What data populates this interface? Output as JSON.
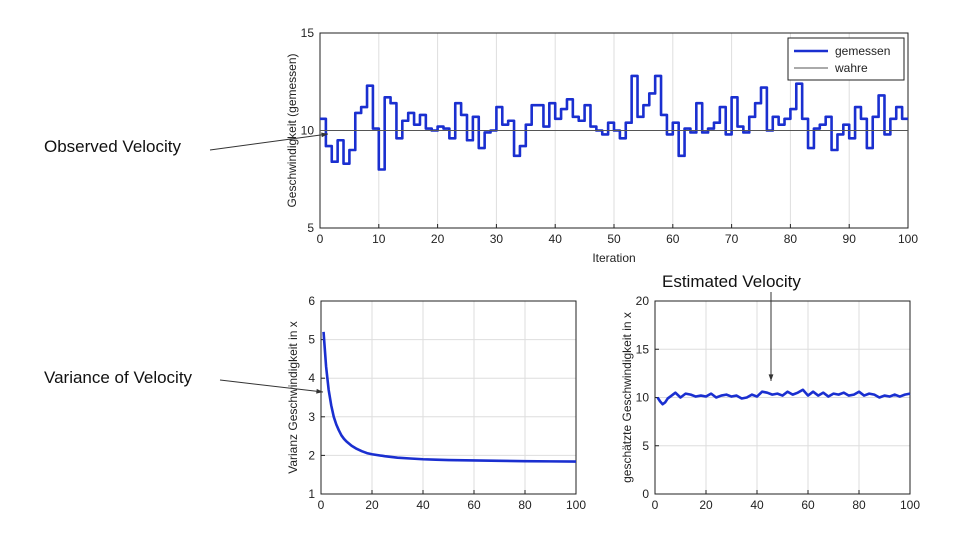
{
  "annotations": {
    "observed": "Observed Velocity",
    "variance": "Variance of Velocity",
    "estimated": "Estimated Velocity"
  },
  "colors": {
    "series": "#1a2fd0",
    "true_line": "#555555",
    "grid": "#dedede",
    "axis": "#222222"
  },
  "chart_data": [
    {
      "id": "top",
      "type": "line",
      "step": true,
      "xlabel": "Iteration",
      "ylabel": "Geschwindigkeit (gemessen)",
      "xlim": [
        0,
        100
      ],
      "ylim": [
        5,
        15
      ],
      "xticks": [
        0,
        10,
        20,
        30,
        40,
        50,
        60,
        70,
        80,
        90,
        100
      ],
      "yticks": [
        5,
        10,
        15
      ],
      "legend": {
        "position": "top-right",
        "entries": [
          "gemessen",
          "wahre"
        ]
      },
      "series": [
        {
          "name": "gemessen",
          "x": [
            0,
            1,
            2,
            3,
            4,
            5,
            6,
            7,
            8,
            9,
            10,
            11,
            12,
            13,
            14,
            15,
            16,
            17,
            18,
            19,
            20,
            21,
            22,
            23,
            24,
            25,
            26,
            27,
            28,
            29,
            30,
            31,
            32,
            33,
            34,
            35,
            36,
            37,
            38,
            39,
            40,
            41,
            42,
            43,
            44,
            45,
            46,
            47,
            48,
            49,
            50,
            51,
            52,
            53,
            54,
            55,
            56,
            57,
            58,
            59,
            60,
            61,
            62,
            63,
            64,
            65,
            66,
            67,
            68,
            69,
            70,
            71,
            72,
            73,
            74,
            75,
            76,
            77,
            78,
            79,
            80,
            81,
            82,
            83,
            84,
            85,
            86,
            87,
            88,
            89,
            90,
            91,
            92,
            93,
            94,
            95,
            96,
            97,
            98,
            99,
            100
          ],
          "values": [
            10.6,
            9.2,
            8.4,
            9.5,
            8.3,
            9.0,
            10.9,
            11.2,
            12.3,
            10.1,
            8.0,
            11.7,
            11.4,
            9.6,
            10.5,
            10.9,
            10.3,
            10.8,
            10.1,
            10.0,
            10.2,
            10.1,
            9.6,
            11.4,
            10.8,
            9.5,
            10.7,
            9.1,
            9.9,
            10.0,
            11.2,
            10.3,
            10.5,
            8.7,
            9.2,
            10.3,
            11.3,
            11.3,
            10.2,
            11.4,
            10.6,
            11.1,
            11.6,
            10.7,
            10.5,
            11.3,
            10.2,
            10.0,
            9.8,
            10.4,
            10.0,
            9.6,
            10.4,
            12.8,
            10.7,
            11.3,
            11.9,
            12.8,
            10.8,
            9.8,
            10.4,
            8.7,
            10.1,
            9.9,
            11.4,
            9.9,
            10.1,
            10.4,
            11.2,
            9.8,
            11.7,
            10.2,
            9.9,
            10.7,
            11.4,
            12.2,
            10.0,
            10.7,
            10.3,
            10.6,
            11.1,
            12.4,
            10.6,
            9.1,
            10.1,
            10.3,
            10.7,
            9.0,
            9.8,
            10.3,
            9.6,
            11.2,
            10.6,
            9.1,
            10.7,
            11.8,
            9.8,
            10.6,
            11.2,
            10.6,
            10.6
          ]
        },
        {
          "name": "wahre",
          "x": [
            0,
            100
          ],
          "values": [
            10,
            10
          ]
        }
      ]
    },
    {
      "id": "variance",
      "type": "line",
      "xlabel": "",
      "ylabel": "Varianz Geschwindigkeit in x",
      "xlim": [
        0,
        100
      ],
      "ylim": [
        1,
        6
      ],
      "xticks": [
        0,
        20,
        40,
        60,
        80,
        100
      ],
      "yticks": [
        1,
        2,
        3,
        4,
        5,
        6
      ],
      "series": [
        {
          "name": "varianz",
          "x": [
            1,
            2,
            3,
            4,
            5,
            6,
            7,
            8,
            9,
            10,
            12,
            14,
            16,
            18,
            20,
            25,
            30,
            35,
            40,
            45,
            50,
            60,
            70,
            80,
            90,
            100
          ],
          "values": [
            5.2,
            4.3,
            3.7,
            3.3,
            3.0,
            2.8,
            2.65,
            2.52,
            2.43,
            2.36,
            2.25,
            2.17,
            2.11,
            2.06,
            2.03,
            1.98,
            1.94,
            1.92,
            1.9,
            1.89,
            1.88,
            1.87,
            1.86,
            1.85,
            1.845,
            1.84
          ]
        }
      ]
    },
    {
      "id": "estimate",
      "type": "line",
      "xlabel": "",
      "ylabel": "geschätzte Geschwindigkeit in x",
      "xlim": [
        0,
        100
      ],
      "ylim": [
        0,
        20
      ],
      "xticks": [
        0,
        20,
        40,
        60,
        80,
        100
      ],
      "yticks": [
        0,
        5,
        10,
        15,
        20
      ],
      "series": [
        {
          "name": "geschätzt",
          "x": [
            1,
            2,
            3,
            4,
            5,
            6,
            8,
            10,
            12,
            14,
            16,
            18,
            20,
            22,
            24,
            26,
            28,
            30,
            32,
            34,
            36,
            38,
            40,
            42,
            44,
            46,
            48,
            50,
            52,
            54,
            56,
            58,
            60,
            62,
            64,
            66,
            68,
            70,
            72,
            74,
            76,
            78,
            80,
            82,
            84,
            86,
            88,
            90,
            92,
            94,
            96,
            98,
            100
          ],
          "values": [
            10.0,
            9.6,
            9.3,
            9.5,
            9.9,
            10.1,
            10.5,
            10.0,
            10.4,
            10.3,
            10.1,
            10.2,
            10.1,
            10.4,
            10.0,
            10.2,
            10.3,
            10.1,
            10.2,
            9.9,
            10.0,
            10.3,
            10.1,
            10.6,
            10.5,
            10.3,
            10.4,
            10.2,
            10.6,
            10.3,
            10.5,
            10.8,
            10.2,
            10.6,
            10.2,
            10.5,
            10.1,
            10.4,
            10.3,
            10.5,
            10.2,
            10.3,
            10.6,
            10.2,
            10.4,
            10.3,
            10.0,
            10.2,
            10.1,
            10.3,
            10.1,
            10.3,
            10.4
          ]
        }
      ]
    }
  ]
}
